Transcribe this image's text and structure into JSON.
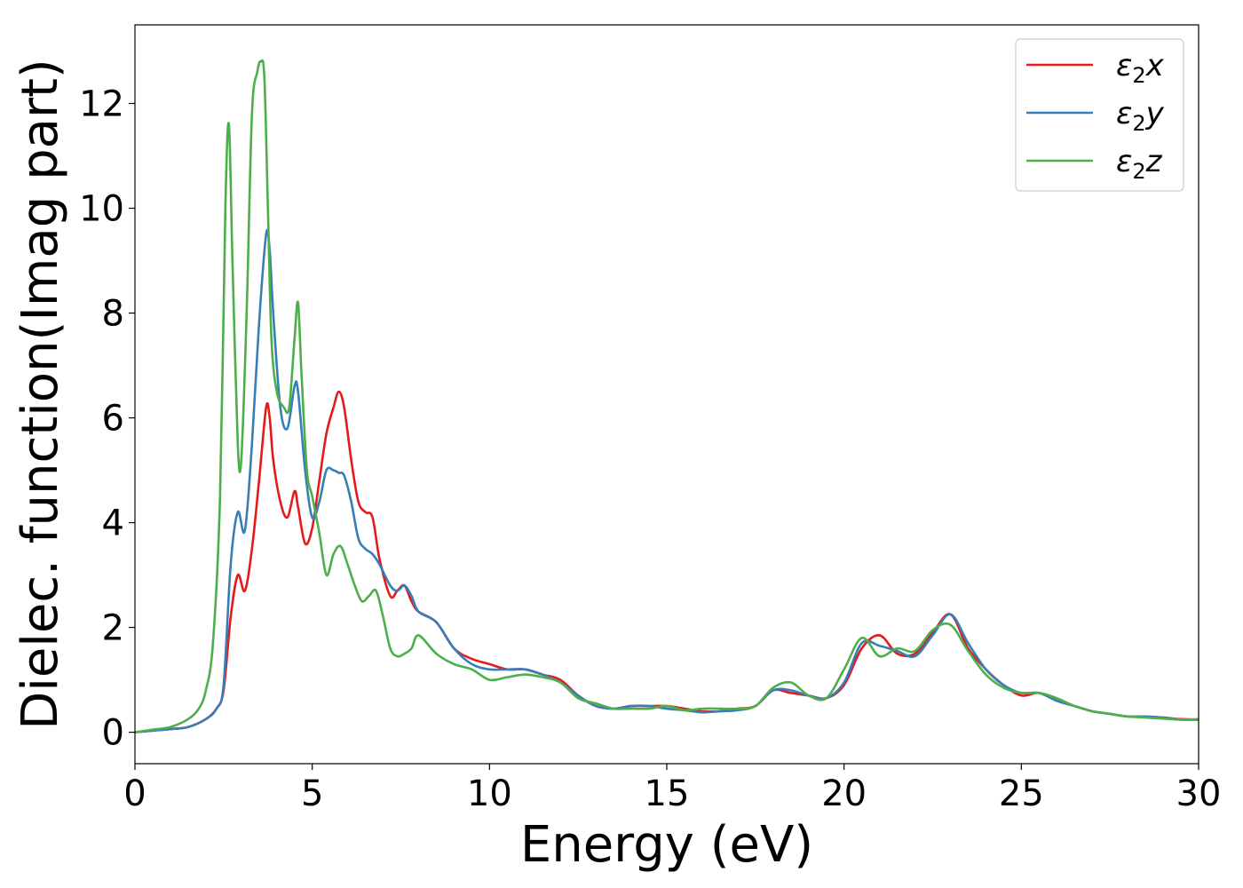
{
  "chart_data": {
    "type": "line",
    "xlabel": "Energy (eV)",
    "ylabel": "Dielec. function(Imag part)",
    "xlim": [
      0,
      30
    ],
    "ylim": [
      -0.6,
      13.5
    ],
    "xticks": [
      0,
      5,
      10,
      15,
      20,
      25,
      30
    ],
    "yticks": [
      0,
      2,
      4,
      6,
      8,
      10,
      12
    ],
    "grid": false,
    "legend_position": "top-right",
    "series": [
      {
        "name": "ε₂x",
        "legend": {
          "base": "ε",
          "sub": "2",
          "var": "x"
        },
        "color": "#e41a1c",
        "x": [
          0,
          0.5,
          1.0,
          1.5,
          2.0,
          2.3,
          2.5,
          2.7,
          2.9,
          3.1,
          3.3,
          3.5,
          3.7,
          3.8,
          3.9,
          4.1,
          4.3,
          4.5,
          4.6,
          4.8,
          5.0,
          5.2,
          5.4,
          5.6,
          5.75,
          5.9,
          6.1,
          6.3,
          6.5,
          6.7,
          6.9,
          7.2,
          7.4,
          7.6,
          7.8,
          8.0,
          8.5,
          9.0,
          9.5,
          10.0,
          10.5,
          11.0,
          11.5,
          12.0,
          12.5,
          13.0,
          13.5,
          14.0,
          14.5,
          15.0,
          15.5,
          16.0,
          16.5,
          17.0,
          17.5,
          18.0,
          18.5,
          19.0,
          19.5,
          20.0,
          20.5,
          21.0,
          21.5,
          22.0,
          22.5,
          23.0,
          23.5,
          24.0,
          24.5,
          25.0,
          25.5,
          26.0,
          26.5,
          27.0,
          27.5,
          28.0,
          28.5,
          29.0,
          29.5,
          30.0
        ],
        "y": [
          0,
          0.03,
          0.06,
          0.1,
          0.25,
          0.45,
          0.8,
          2.2,
          3.0,
          2.7,
          3.5,
          4.8,
          6.2,
          6.0,
          5.2,
          4.4,
          4.1,
          4.6,
          4.3,
          3.6,
          3.9,
          4.8,
          5.7,
          6.2,
          6.5,
          6.2,
          5.2,
          4.4,
          4.2,
          4.1,
          3.3,
          2.6,
          2.7,
          2.8,
          2.5,
          2.3,
          2.1,
          1.6,
          1.4,
          1.3,
          1.2,
          1.2,
          1.1,
          1.0,
          0.7,
          0.5,
          0.45,
          0.5,
          0.5,
          0.5,
          0.45,
          0.4,
          0.4,
          0.45,
          0.5,
          0.8,
          0.75,
          0.7,
          0.65,
          0.9,
          1.6,
          1.85,
          1.5,
          1.5,
          1.9,
          2.25,
          1.6,
          1.2,
          0.9,
          0.7,
          0.75,
          0.6,
          0.5,
          0.4,
          0.35,
          0.3,
          0.3,
          0.28,
          0.25,
          0.24
        ]
      },
      {
        "name": "ε₂y",
        "legend": {
          "base": "ε",
          "sub": "2",
          "var": "y"
        },
        "color": "#377eb8",
        "x": [
          0,
          0.5,
          1.0,
          1.5,
          2.0,
          2.3,
          2.5,
          2.7,
          2.9,
          3.1,
          3.3,
          3.5,
          3.7,
          3.8,
          3.9,
          4.1,
          4.3,
          4.5,
          4.6,
          4.8,
          5.0,
          5.2,
          5.4,
          5.6,
          5.75,
          5.9,
          6.1,
          6.3,
          6.5,
          6.7,
          6.9,
          7.2,
          7.4,
          7.6,
          7.8,
          8.0,
          8.5,
          9.0,
          9.5,
          10.0,
          10.5,
          11.0,
          11.5,
          12.0,
          12.5,
          13.0,
          13.5,
          14.0,
          14.5,
          15.0,
          15.5,
          16.0,
          16.5,
          17.0,
          17.5,
          18.0,
          18.5,
          19.0,
          19.5,
          20.0,
          20.5,
          21.0,
          21.5,
          22.0,
          22.5,
          23.0,
          23.5,
          24.0,
          24.5,
          25.0,
          25.5,
          26.0,
          26.5,
          27.0,
          27.5,
          28.0,
          28.5,
          29.0,
          29.5,
          30.0
        ],
        "y": [
          0,
          0.03,
          0.06,
          0.1,
          0.25,
          0.45,
          0.9,
          3.2,
          4.2,
          3.85,
          5.5,
          7.8,
          9.5,
          9.2,
          8.0,
          6.2,
          5.8,
          6.6,
          6.5,
          5.0,
          4.1,
          4.4,
          5.0,
          5.0,
          4.95,
          4.9,
          4.4,
          3.7,
          3.5,
          3.4,
          3.2,
          2.8,
          2.7,
          2.8,
          2.6,
          2.3,
          2.1,
          1.6,
          1.3,
          1.2,
          1.2,
          1.2,
          1.1,
          0.95,
          0.7,
          0.5,
          0.45,
          0.5,
          0.5,
          0.45,
          0.42,
          0.38,
          0.4,
          0.42,
          0.5,
          0.8,
          0.8,
          0.7,
          0.65,
          0.95,
          1.7,
          1.65,
          1.55,
          1.45,
          1.85,
          2.25,
          1.7,
          1.2,
          0.9,
          0.75,
          0.75,
          0.6,
          0.5,
          0.4,
          0.35,
          0.3,
          0.3,
          0.28,
          0.24,
          0.24
        ]
      },
      {
        "name": "ε₂z",
        "legend": {
          "base": "ε",
          "sub": "2",
          "var": "z"
        },
        "color": "#4daf4a",
        "x": [
          0,
          0.5,
          1.0,
          1.5,
          1.8,
          2.0,
          2.2,
          2.4,
          2.55,
          2.65,
          2.75,
          2.9,
          3.0,
          3.15,
          3.3,
          3.45,
          3.55,
          3.65,
          3.75,
          3.85,
          4.0,
          4.2,
          4.35,
          4.5,
          4.6,
          4.7,
          4.85,
          5.0,
          5.2,
          5.4,
          5.6,
          5.8,
          6.0,
          6.2,
          6.4,
          6.6,
          6.8,
          7.0,
          7.2,
          7.4,
          7.6,
          7.8,
          8.0,
          8.5,
          9.0,
          9.5,
          10.0,
          10.5,
          11.0,
          11.5,
          12.0,
          12.5,
          13.0,
          13.5,
          14.0,
          14.5,
          15.0,
          15.5,
          16.0,
          16.5,
          17.0,
          17.5,
          18.0,
          18.5,
          19.0,
          19.5,
          20.0,
          20.5,
          21.0,
          21.5,
          22.0,
          22.5,
          23.0,
          23.5,
          24.0,
          24.5,
          25.0,
          25.5,
          26.0,
          26.5,
          27.0,
          27.5,
          28.0,
          28.5,
          29.0,
          29.5,
          30.0
        ],
        "y": [
          0,
          0.05,
          0.1,
          0.25,
          0.45,
          0.8,
          1.7,
          4.5,
          10.0,
          11.6,
          9.0,
          5.5,
          5.2,
          8.0,
          11.8,
          12.6,
          12.8,
          12.5,
          10.0,
          7.5,
          6.5,
          6.2,
          6.2,
          7.5,
          8.2,
          6.8,
          5.0,
          4.5,
          3.8,
          3.0,
          3.4,
          3.55,
          3.2,
          2.8,
          2.5,
          2.6,
          2.7,
          2.2,
          1.6,
          1.45,
          1.5,
          1.6,
          1.85,
          1.5,
          1.3,
          1.2,
          1.0,
          1.05,
          1.1,
          1.05,
          0.95,
          0.65,
          0.55,
          0.45,
          0.45,
          0.45,
          0.5,
          0.42,
          0.45,
          0.45,
          0.45,
          0.5,
          0.85,
          0.95,
          0.7,
          0.65,
          1.2,
          1.8,
          1.45,
          1.6,
          1.55,
          1.95,
          2.05,
          1.55,
          1.1,
          0.85,
          0.75,
          0.75,
          0.65,
          0.5,
          0.4,
          0.35,
          0.3,
          0.28,
          0.26,
          0.24,
          0.25
        ]
      }
    ]
  }
}
